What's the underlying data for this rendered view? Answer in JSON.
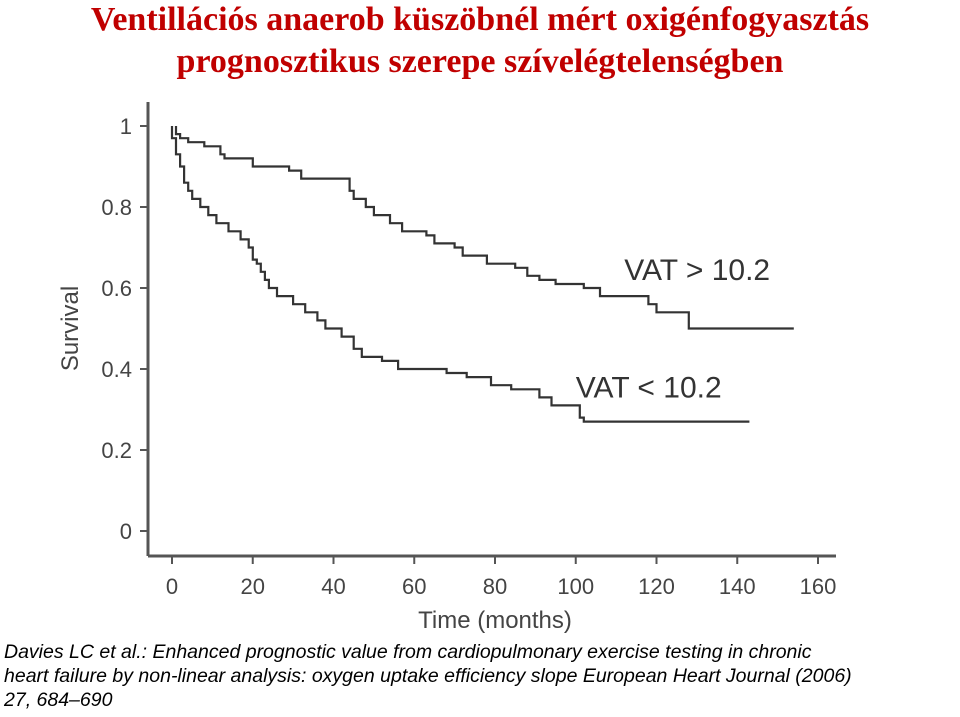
{
  "title_line1": "Ventillációs anaerob küszöbnél mért oxigénfogyasztás",
  "title_line2": "prognosztikus szerepe szívelégtelenségben",
  "citation_lines": [
    "Davies LC et al.: Enhanced prognostic value from cardiopulmonary exercise testing in chronic",
    "heart failure by non-linear analysis: oxygen uptake efficiency slope European Heart Journal (2006)",
    "27, 684–690"
  ],
  "chart_data": {
    "type": "line",
    "step": true,
    "xlabel": "Time (months)",
    "ylabel": "Survival",
    "xlim": [
      0,
      160
    ],
    "ylim": [
      0,
      1
    ],
    "xticks": [
      0,
      20,
      40,
      60,
      80,
      100,
      120,
      140,
      160
    ],
    "yticks": [
      0,
      0.2,
      0.4,
      0.6,
      0.8,
      1
    ],
    "ytick_labels": [
      "0",
      "0.2",
      "0.4",
      "0.6",
      "0.8",
      "1"
    ],
    "grid": false,
    "colors": {
      "line": "#333333",
      "axis": "#555555",
      "title": "#c00000"
    },
    "series": [
      {
        "name": "VAT > 10.2",
        "points": [
          [
            1,
            1
          ],
          [
            1,
            0.98
          ],
          [
            2,
            0.98
          ],
          [
            2,
            0.97
          ],
          [
            4,
            0.97
          ],
          [
            4,
            0.96
          ],
          [
            8,
            0.96
          ],
          [
            8,
            0.95
          ],
          [
            12,
            0.95
          ],
          [
            12,
            0.93
          ],
          [
            13,
            0.93
          ],
          [
            13,
            0.92
          ],
          [
            20,
            0.92
          ],
          [
            20,
            0.9
          ],
          [
            29,
            0.9
          ],
          [
            29,
            0.89
          ],
          [
            32,
            0.89
          ],
          [
            32,
            0.87
          ],
          [
            44,
            0.87
          ],
          [
            44,
            0.84
          ],
          [
            45,
            0.84
          ],
          [
            45,
            0.82
          ],
          [
            48,
            0.82
          ],
          [
            48,
            0.8
          ],
          [
            50,
            0.8
          ],
          [
            50,
            0.78
          ],
          [
            54,
            0.78
          ],
          [
            54,
            0.76
          ],
          [
            57,
            0.76
          ],
          [
            57,
            0.74
          ],
          [
            63,
            0.74
          ],
          [
            63,
            0.73
          ],
          [
            65,
            0.73
          ],
          [
            65,
            0.71
          ],
          [
            70,
            0.71
          ],
          [
            70,
            0.7
          ],
          [
            72,
            0.7
          ],
          [
            72,
            0.68
          ],
          [
            78,
            0.68
          ],
          [
            78,
            0.66
          ],
          [
            85,
            0.66
          ],
          [
            85,
            0.65
          ],
          [
            88,
            0.65
          ],
          [
            88,
            0.63
          ],
          [
            91,
            0.63
          ],
          [
            91,
            0.62
          ],
          [
            95,
            0.62
          ],
          [
            95,
            0.61
          ],
          [
            102,
            0.61
          ],
          [
            102,
            0.6
          ],
          [
            106,
            0.6
          ],
          [
            106,
            0.58
          ],
          [
            118,
            0.58
          ],
          [
            118,
            0.56
          ],
          [
            120,
            0.56
          ],
          [
            120,
            0.54
          ],
          [
            128,
            0.54
          ],
          [
            128,
            0.5
          ],
          [
            134,
            0.5
          ],
          [
            154,
            0.5
          ]
        ]
      },
      {
        "name": "VAT < 10.2",
        "points": [
          [
            0,
            1
          ],
          [
            0,
            0.97
          ],
          [
            1,
            0.97
          ],
          [
            1,
            0.93
          ],
          [
            2,
            0.93
          ],
          [
            2,
            0.9
          ],
          [
            3,
            0.9
          ],
          [
            3,
            0.86
          ],
          [
            4,
            0.86
          ],
          [
            4,
            0.84
          ],
          [
            5,
            0.84
          ],
          [
            5,
            0.82
          ],
          [
            7,
            0.82
          ],
          [
            7,
            0.8
          ],
          [
            9,
            0.8
          ],
          [
            9,
            0.78
          ],
          [
            11,
            0.78
          ],
          [
            11,
            0.76
          ],
          [
            14,
            0.76
          ],
          [
            14,
            0.74
          ],
          [
            17,
            0.74
          ],
          [
            17,
            0.72
          ],
          [
            19,
            0.72
          ],
          [
            19,
            0.7
          ],
          [
            20,
            0.7
          ],
          [
            20,
            0.67
          ],
          [
            21,
            0.67
          ],
          [
            21,
            0.66
          ],
          [
            22,
            0.66
          ],
          [
            22,
            0.64
          ],
          [
            23,
            0.64
          ],
          [
            23,
            0.62
          ],
          [
            24,
            0.62
          ],
          [
            24,
            0.6
          ],
          [
            26,
            0.6
          ],
          [
            26,
            0.58
          ],
          [
            30,
            0.58
          ],
          [
            30,
            0.56
          ],
          [
            33,
            0.56
          ],
          [
            33,
            0.54
          ],
          [
            36,
            0.54
          ],
          [
            36,
            0.52
          ],
          [
            38,
            0.52
          ],
          [
            38,
            0.5
          ],
          [
            42,
            0.5
          ],
          [
            42,
            0.48
          ],
          [
            45,
            0.48
          ],
          [
            45,
            0.45
          ],
          [
            47,
            0.45
          ],
          [
            47,
            0.43
          ],
          [
            52,
            0.43
          ],
          [
            52,
            0.42
          ],
          [
            56,
            0.42
          ],
          [
            56,
            0.4
          ],
          [
            68,
            0.4
          ],
          [
            68,
            0.39
          ],
          [
            73,
            0.39
          ],
          [
            73,
            0.38
          ],
          [
            79,
            0.38
          ],
          [
            79,
            0.36
          ],
          [
            84,
            0.36
          ],
          [
            84,
            0.35
          ],
          [
            91,
            0.35
          ],
          [
            91,
            0.33
          ],
          [
            94,
            0.33
          ],
          [
            94,
            0.31
          ],
          [
            101,
            0.31
          ],
          [
            101,
            0.28
          ],
          [
            102,
            0.28
          ],
          [
            102,
            0.27
          ],
          [
            143,
            0.27
          ]
        ]
      }
    ],
    "annotations": [
      {
        "text": "VAT > 10.2",
        "x": 112,
        "y": 0.62
      },
      {
        "text": "VAT < 10.2",
        "x": 100,
        "y": 0.33
      }
    ]
  }
}
